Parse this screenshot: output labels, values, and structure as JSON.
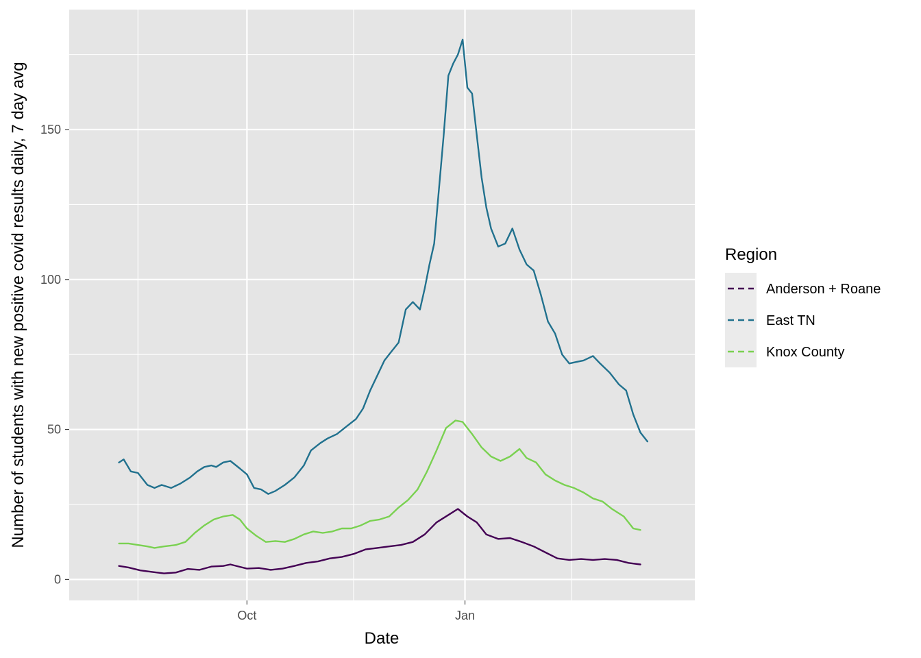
{
  "chart_data": {
    "type": "line",
    "title": "",
    "xlabel": "Date",
    "ylabel": "Number of students with new positive covid results daily, 7 day avg",
    "x_ticks": [
      {
        "date": "2021-10-01",
        "label": "Oct"
      },
      {
        "date": "2022-01-01",
        "label": "Jan"
      }
    ],
    "x_minor_dates": [
      "2021-08-16",
      "2021-11-15",
      "2022-02-15"
    ],
    "x_range": [
      "2021-07-18",
      "2022-04-08"
    ],
    "y_ticks": [
      0,
      50,
      100,
      150
    ],
    "y_minor": [
      25,
      75,
      125,
      175
    ],
    "ylim": [
      -7,
      190
    ],
    "grid": true,
    "legend": {
      "title": "Region",
      "position": "right"
    },
    "colors": {
      "panel_bg": "#e5e5e5",
      "grid": "#ffffff",
      "legend_key_bg": "#ebebeb"
    },
    "series": [
      {
        "name": "Anderson + Roane",
        "color": "#440154",
        "points": [
          [
            "2021-08-08",
            4.5
          ],
          [
            "2021-08-12",
            4
          ],
          [
            "2021-08-17",
            3
          ],
          [
            "2021-08-22",
            2.5
          ],
          [
            "2021-08-27",
            2
          ],
          [
            "2021-09-01",
            2.3
          ],
          [
            "2021-09-06",
            3.5
          ],
          [
            "2021-09-11",
            3.2
          ],
          [
            "2021-09-16",
            4.3
          ],
          [
            "2021-09-21",
            4.5
          ],
          [
            "2021-09-24",
            5
          ],
          [
            "2021-09-28",
            4.2
          ],
          [
            "2021-10-01",
            3.6
          ],
          [
            "2021-10-06",
            3.8
          ],
          [
            "2021-10-11",
            3.2
          ],
          [
            "2021-10-16",
            3.6
          ],
          [
            "2021-10-21",
            4.5
          ],
          [
            "2021-10-26",
            5.5
          ],
          [
            "2021-10-31",
            6
          ],
          [
            "2021-11-05",
            7
          ],
          [
            "2021-11-10",
            7.5
          ],
          [
            "2021-11-15",
            8.5
          ],
          [
            "2021-11-20",
            10
          ],
          [
            "2021-11-25",
            10.5
          ],
          [
            "2021-11-30",
            11
          ],
          [
            "2021-12-05",
            11.5
          ],
          [
            "2021-12-10",
            12.5
          ],
          [
            "2021-12-15",
            15
          ],
          [
            "2021-12-20",
            19
          ],
          [
            "2021-12-25",
            21.5
          ],
          [
            "2021-12-29",
            23.5
          ],
          [
            "2022-01-02",
            21
          ],
          [
            "2022-01-06",
            19
          ],
          [
            "2022-01-10",
            15
          ],
          [
            "2022-01-15",
            13.5
          ],
          [
            "2022-01-20",
            13.8
          ],
          [
            "2022-01-25",
            12.5
          ],
          [
            "2022-01-30",
            11
          ],
          [
            "2022-02-04",
            9
          ],
          [
            "2022-02-09",
            7
          ],
          [
            "2022-02-14",
            6.5
          ],
          [
            "2022-02-19",
            6.8
          ],
          [
            "2022-02-24",
            6.5
          ],
          [
            "2022-03-01",
            6.8
          ],
          [
            "2022-03-06",
            6.5
          ],
          [
            "2022-03-11",
            5.5
          ],
          [
            "2022-03-16",
            5
          ]
        ]
      },
      {
        "name": "East TN",
        "color": "#21718e",
        "points": [
          [
            "2021-08-08",
            39
          ],
          [
            "2021-08-10",
            40
          ],
          [
            "2021-08-13",
            36
          ],
          [
            "2021-08-16",
            35.5
          ],
          [
            "2021-08-20",
            31.5
          ],
          [
            "2021-08-23",
            30.5
          ],
          [
            "2021-08-26",
            31.5
          ],
          [
            "2021-08-30",
            30.5
          ],
          [
            "2021-09-03",
            32
          ],
          [
            "2021-09-07",
            34
          ],
          [
            "2021-09-10",
            36
          ],
          [
            "2021-09-13",
            37.5
          ],
          [
            "2021-09-16",
            38
          ],
          [
            "2021-09-18",
            37.5
          ],
          [
            "2021-09-21",
            39
          ],
          [
            "2021-09-24",
            39.5
          ],
          [
            "2021-09-28",
            37
          ],
          [
            "2021-10-01",
            35
          ],
          [
            "2021-10-04",
            30.5
          ],
          [
            "2021-10-07",
            30
          ],
          [
            "2021-10-10",
            28.5
          ],
          [
            "2021-10-13",
            29.5
          ],
          [
            "2021-10-17",
            31.5
          ],
          [
            "2021-10-21",
            34
          ],
          [
            "2021-10-25",
            38
          ],
          [
            "2021-10-28",
            43
          ],
          [
            "2021-11-01",
            45.5
          ],
          [
            "2021-11-04",
            47
          ],
          [
            "2021-11-08",
            48.5
          ],
          [
            "2021-11-12",
            51
          ],
          [
            "2021-11-16",
            53.5
          ],
          [
            "2021-11-19",
            57
          ],
          [
            "2021-11-22",
            63
          ],
          [
            "2021-11-25",
            68
          ],
          [
            "2021-11-28",
            73
          ],
          [
            "2021-12-01",
            76
          ],
          [
            "2021-12-04",
            79
          ],
          [
            "2021-12-07",
            90
          ],
          [
            "2021-12-10",
            92.5
          ],
          [
            "2021-12-13",
            90
          ],
          [
            "2021-12-15",
            97
          ],
          [
            "2021-12-17",
            105
          ],
          [
            "2021-12-19",
            112
          ],
          [
            "2021-12-21",
            130
          ],
          [
            "2021-12-23",
            148
          ],
          [
            "2021-12-25",
            168
          ],
          [
            "2021-12-27",
            172
          ],
          [
            "2021-12-29",
            175
          ],
          [
            "2021-12-31",
            180
          ],
          [
            "2022-01-02",
            164
          ],
          [
            "2022-01-04",
            162
          ],
          [
            "2022-01-06",
            148
          ],
          [
            "2022-01-08",
            134
          ],
          [
            "2022-01-10",
            124
          ],
          [
            "2022-01-12",
            117
          ],
          [
            "2022-01-15",
            111
          ],
          [
            "2022-01-18",
            112
          ],
          [
            "2022-01-21",
            117
          ],
          [
            "2022-01-24",
            110
          ],
          [
            "2022-01-27",
            105
          ],
          [
            "2022-01-30",
            103
          ],
          [
            "2022-02-02",
            95
          ],
          [
            "2022-02-05",
            86
          ],
          [
            "2022-02-08",
            82
          ],
          [
            "2022-02-11",
            75
          ],
          [
            "2022-02-14",
            72
          ],
          [
            "2022-02-17",
            72.5
          ],
          [
            "2022-02-20",
            73
          ],
          [
            "2022-02-24",
            74.5
          ],
          [
            "2022-02-27",
            72
          ],
          [
            "2022-03-03",
            69
          ],
          [
            "2022-03-07",
            65
          ],
          [
            "2022-03-10",
            63
          ],
          [
            "2022-03-13",
            55
          ],
          [
            "2022-03-16",
            49
          ],
          [
            "2022-03-19",
            46
          ]
        ]
      },
      {
        "name": "Knox County",
        "color": "#7ad151",
        "points": [
          [
            "2021-08-08",
            12
          ],
          [
            "2021-08-12",
            12
          ],
          [
            "2021-08-16",
            11.5
          ],
          [
            "2021-08-20",
            11
          ],
          [
            "2021-08-23",
            10.5
          ],
          [
            "2021-08-27",
            11
          ],
          [
            "2021-09-01",
            11.5
          ],
          [
            "2021-09-05",
            12.5
          ],
          [
            "2021-09-09",
            15.5
          ],
          [
            "2021-09-13",
            18
          ],
          [
            "2021-09-17",
            20
          ],
          [
            "2021-09-21",
            21
          ],
          [
            "2021-09-25",
            21.5
          ],
          [
            "2021-09-28",
            20
          ],
          [
            "2021-10-01",
            17
          ],
          [
            "2021-10-05",
            14.5
          ],
          [
            "2021-10-09",
            12.5
          ],
          [
            "2021-10-13",
            12.8
          ],
          [
            "2021-10-17",
            12.5
          ],
          [
            "2021-10-21",
            13.5
          ],
          [
            "2021-10-25",
            15
          ],
          [
            "2021-10-29",
            16
          ],
          [
            "2021-11-02",
            15.5
          ],
          [
            "2021-11-06",
            16
          ],
          [
            "2021-11-10",
            17
          ],
          [
            "2021-11-14",
            17
          ],
          [
            "2021-11-18",
            18
          ],
          [
            "2021-11-22",
            19.5
          ],
          [
            "2021-11-26",
            20
          ],
          [
            "2021-11-30",
            21
          ],
          [
            "2021-12-04",
            24
          ],
          [
            "2021-12-08",
            26.5
          ],
          [
            "2021-12-12",
            30
          ],
          [
            "2021-12-16",
            36
          ],
          [
            "2021-12-20",
            43
          ],
          [
            "2021-12-24",
            50.5
          ],
          [
            "2021-12-28",
            53
          ],
          [
            "2021-12-31",
            52.5
          ],
          [
            "2022-01-04",
            48.5
          ],
          [
            "2022-01-08",
            44
          ],
          [
            "2022-01-12",
            41
          ],
          [
            "2022-01-16",
            39.5
          ],
          [
            "2022-01-20",
            41
          ],
          [
            "2022-01-24",
            43.5
          ],
          [
            "2022-01-27",
            40.5
          ],
          [
            "2022-01-31",
            39
          ],
          [
            "2022-02-04",
            35
          ],
          [
            "2022-02-08",
            33
          ],
          [
            "2022-02-12",
            31.5
          ],
          [
            "2022-02-16",
            30.5
          ],
          [
            "2022-02-20",
            29
          ],
          [
            "2022-02-24",
            27
          ],
          [
            "2022-02-28",
            26
          ],
          [
            "2022-03-04",
            23.5
          ],
          [
            "2022-03-09",
            21
          ],
          [
            "2022-03-13",
            17
          ],
          [
            "2022-03-16",
            16.5
          ]
        ]
      }
    ]
  }
}
